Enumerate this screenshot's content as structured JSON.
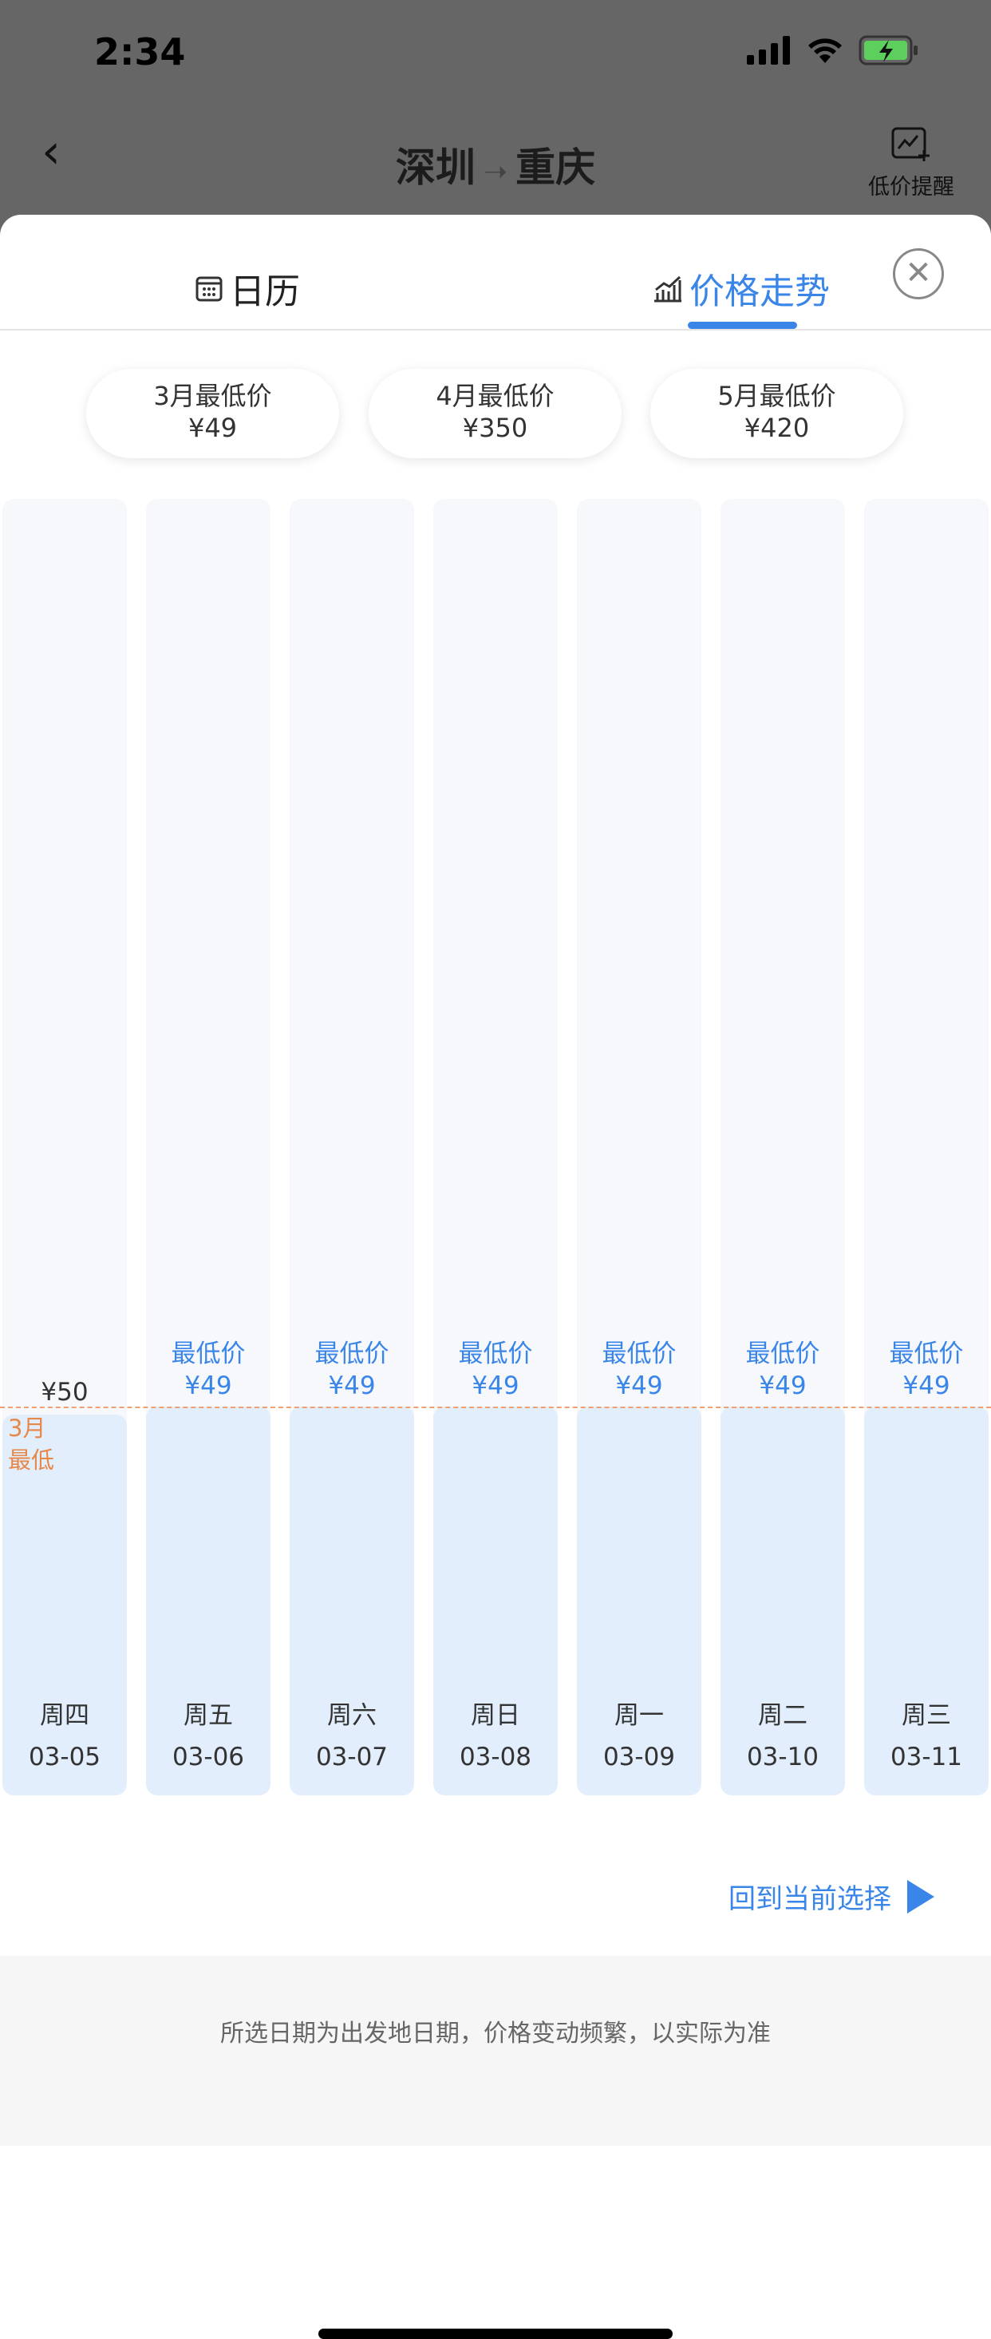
{
  "status": {
    "time": "2:34"
  },
  "header": {
    "from": "深圳",
    "arrow": "→",
    "to": "重庆",
    "alert_label": "低价提醒"
  },
  "tabs": [
    {
      "label": "日历",
      "icon": "calendar-icon"
    },
    {
      "label": "价格走势",
      "icon": "trend-chart-icon",
      "active": true
    }
  ],
  "month_lows": [
    {
      "label": "3月最低价",
      "price": "¥49"
    },
    {
      "label": "4月最低价",
      "price": "¥350"
    },
    {
      "label": "5月最低价",
      "price": "¥420"
    }
  ],
  "days": [
    {
      "weekday": "周四",
      "date": "03-05",
      "tag": "",
      "price": "¥50",
      "value": 50
    },
    {
      "weekday": "周五",
      "date": "03-06",
      "tag": "最低价",
      "price": "¥49",
      "value": 49
    },
    {
      "weekday": "周六",
      "date": "03-07",
      "tag": "最低价",
      "price": "¥49",
      "value": 49
    },
    {
      "weekday": "周日",
      "date": "03-08",
      "tag": "最低价",
      "price": "¥49",
      "value": 49
    },
    {
      "weekday": "周一",
      "date": "03-09",
      "tag": "最低价",
      "price": "¥49",
      "value": 49
    },
    {
      "weekday": "周二",
      "date": "03-10",
      "tag": "最低价",
      "price": "¥49",
      "value": 49
    },
    {
      "weekday": "周三",
      "date": "03-11",
      "tag": "最低价",
      "price": "¥49",
      "value": 49
    }
  ],
  "min_line": {
    "label_line1": "3月",
    "label_line2": "最低",
    "value": 49
  },
  "return_label": "回到当前选择",
  "footer_note": "所选日期为出发地日期，价格变动频繁，以实际为准",
  "colors": {
    "accent": "#3a85e8",
    "min_line": "#e8874a",
    "bar_fill": "#e2eefc"
  }
}
